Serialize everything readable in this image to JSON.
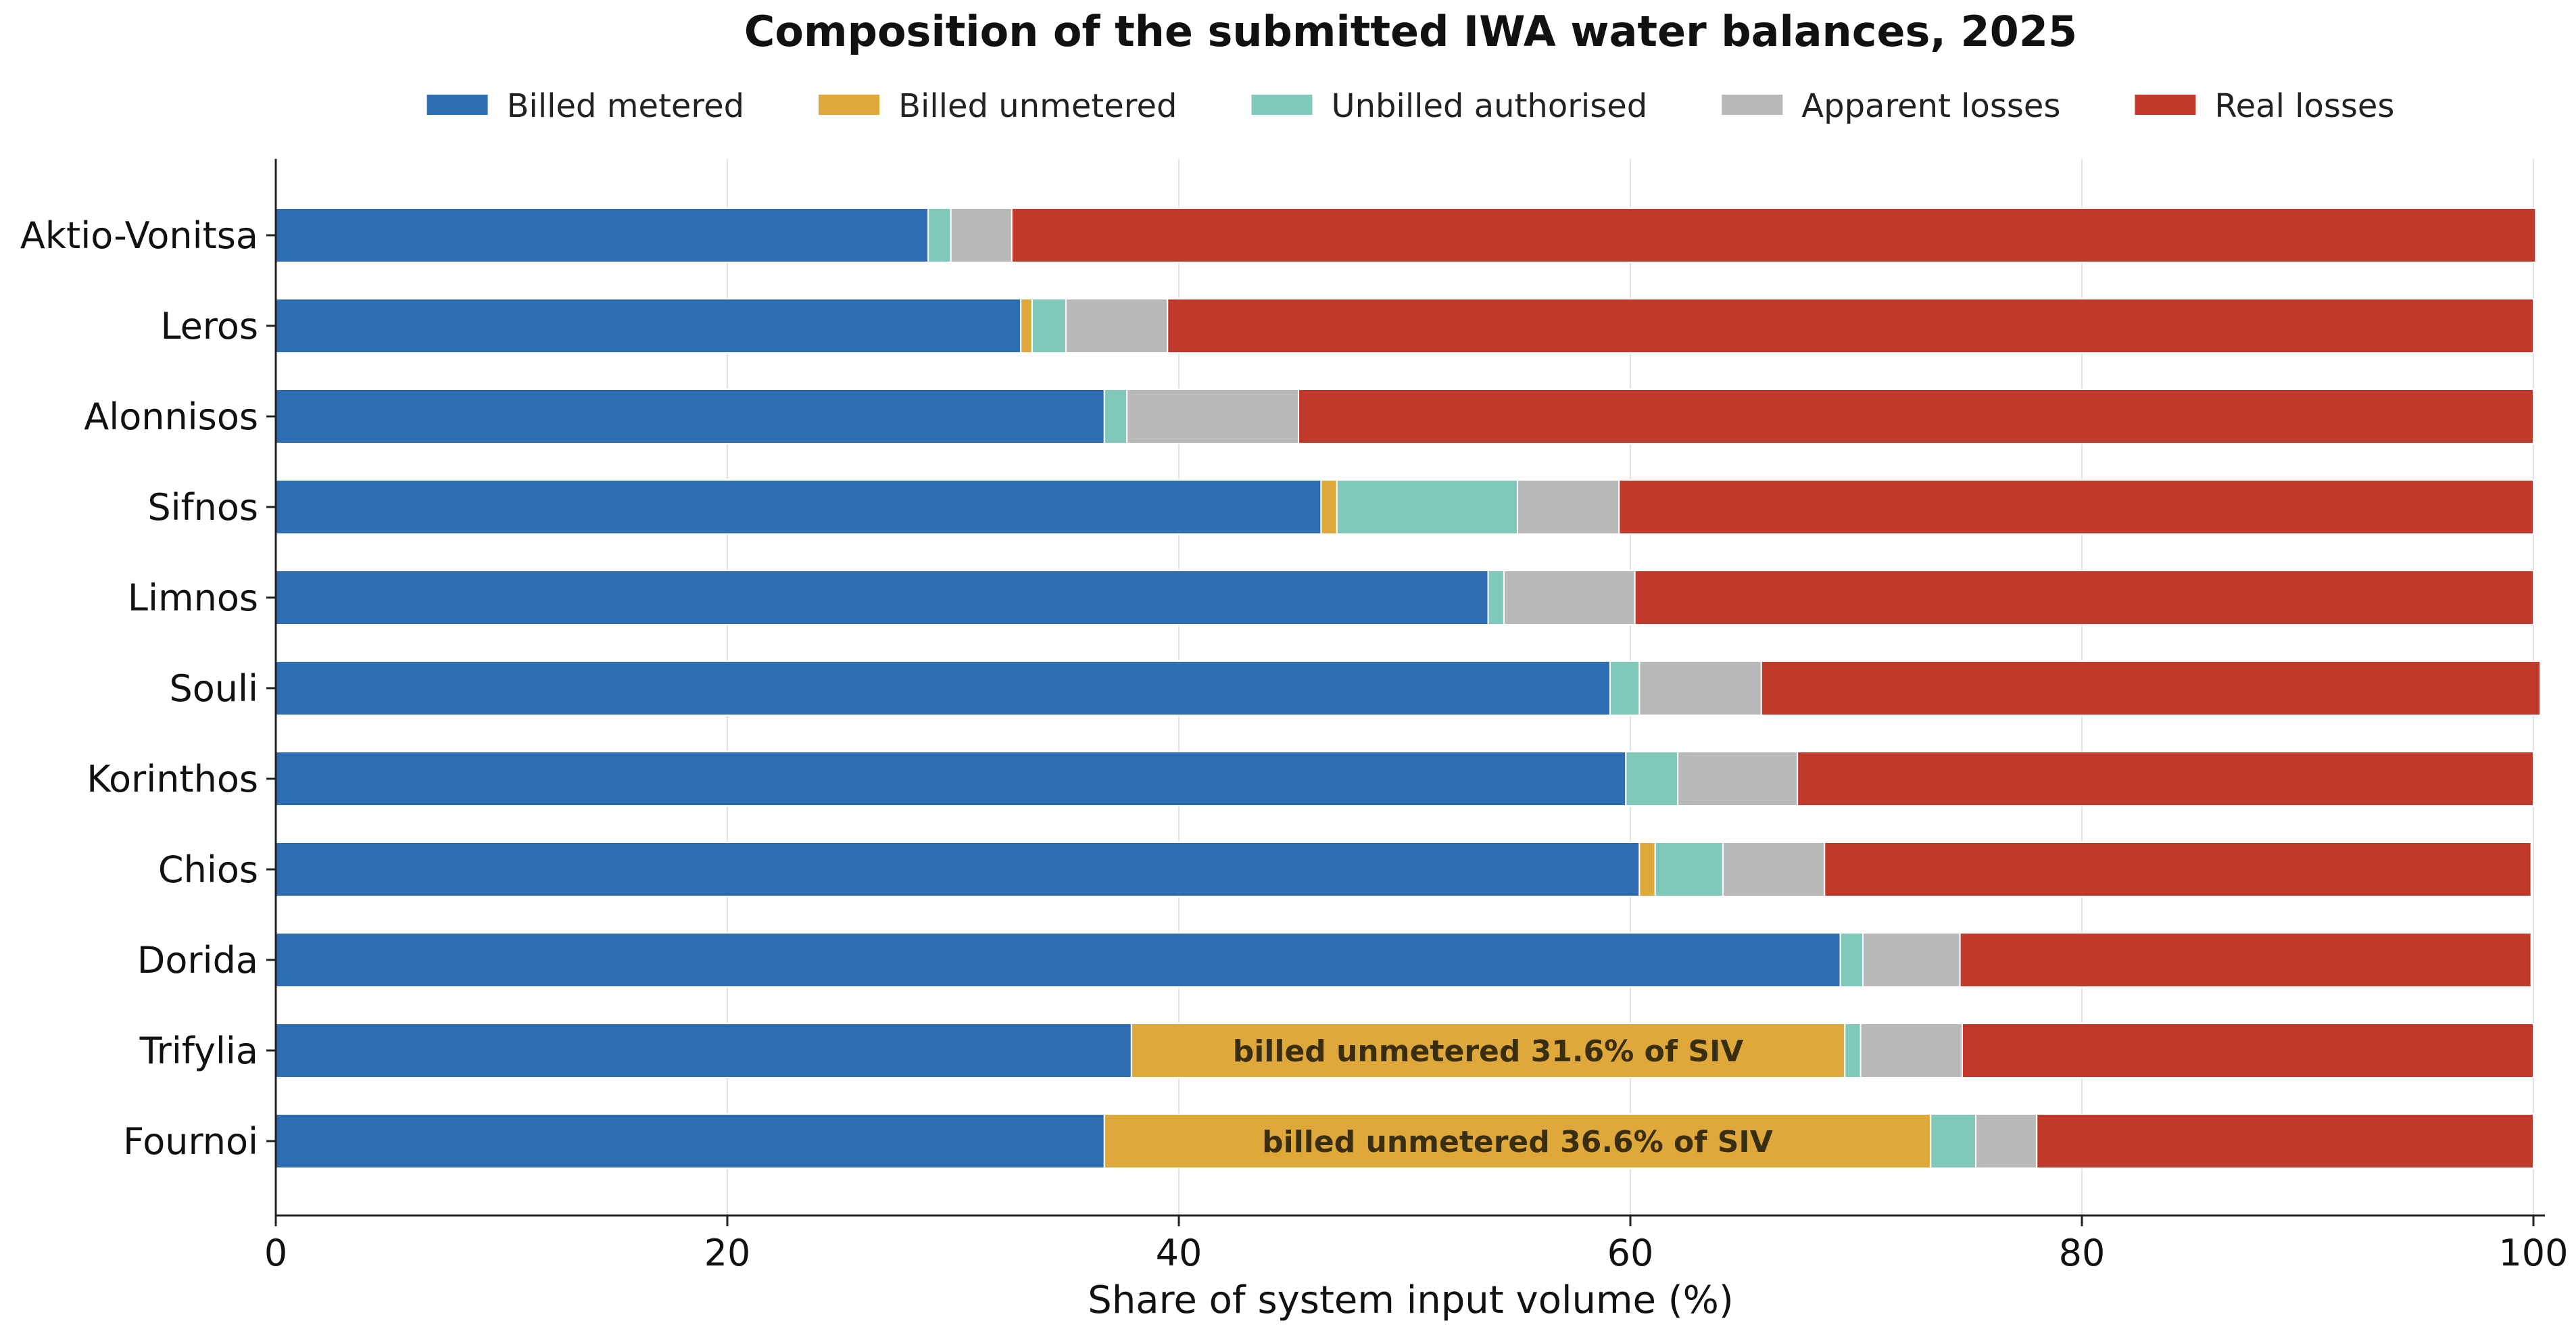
{
  "chart_data": {
    "type": "bar",
    "orientation": "horizontal",
    "stacked": true,
    "title": "Composition of the submitted IWA water balances, 2025",
    "xlabel": "Share of system input volume (%)",
    "ylabel": "",
    "xlim": [
      0,
      100
    ],
    "xticks": [
      0,
      20,
      40,
      60,
      80,
      100
    ],
    "grid": "vertical",
    "legend_position": "top",
    "categories": [
      "Aktio-Vonitsa",
      "Leros",
      "Alonnisos",
      "Sifnos",
      "Limnos",
      "Souli",
      "Korinthos",
      "Chios",
      "Dorida",
      "Trifylia",
      "Fournoi"
    ],
    "series": [
      {
        "name": "Billed metered",
        "color": "#2e6db4",
        "values": [
          28.9,
          33.0,
          36.7,
          46.3,
          53.7,
          59.1,
          59.8,
          60.4,
          69.3,
          37.9,
          36.7
        ]
      },
      {
        "name": "Billed unmetered",
        "color": "#dea83a",
        "values": [
          0.0,
          0.5,
          0.0,
          0.7,
          0.0,
          0.0,
          0.0,
          0.7,
          0.0,
          31.6,
          36.6
        ]
      },
      {
        "name": "Unbilled authorised",
        "color": "#80c8b9",
        "values": [
          1.0,
          1.5,
          1.0,
          8.0,
          0.7,
          1.3,
          2.3,
          3.0,
          1.0,
          0.7,
          2.0
        ]
      },
      {
        "name": "Apparent losses",
        "color": "#b9b9b9",
        "values": [
          2.7,
          4.5,
          7.6,
          4.5,
          5.8,
          5.4,
          5.3,
          4.5,
          4.3,
          4.5,
          2.7
        ]
      },
      {
        "name": "Real losses",
        "color": "#c0392b",
        "values": [
          67.5,
          60.5,
          54.7,
          40.5,
          39.8,
          34.5,
          32.6,
          31.3,
          25.3,
          25.3,
          22.0
        ]
      }
    ],
    "annotations": [
      {
        "category": "Trifylia",
        "text": "billed unmetered 31.6% of SIV"
      },
      {
        "category": "Fournoi",
        "text": "billed unmetered 36.6% of SIV"
      }
    ]
  }
}
